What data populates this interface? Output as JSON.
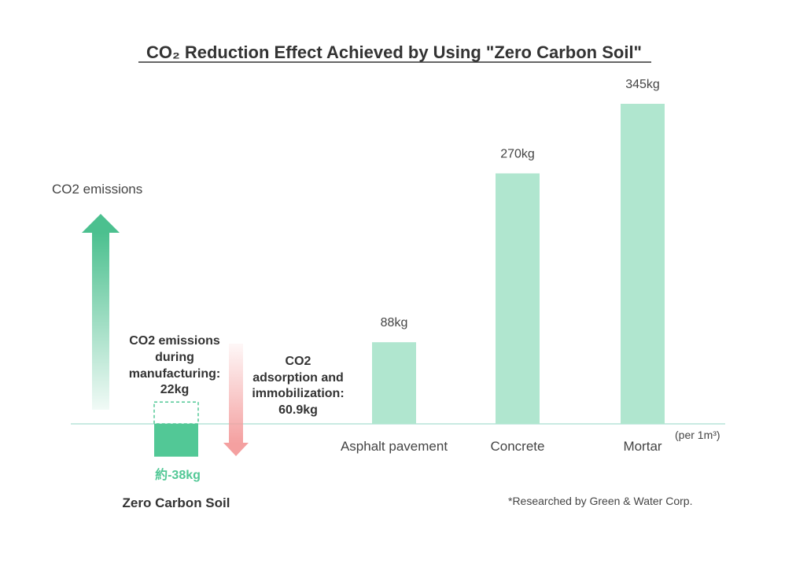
{
  "colors": {
    "bar": "#b0e6cf",
    "zero_bar": "#52c896",
    "baseline": "#a9ded0",
    "up_arrow": "#4cc08f",
    "down_arrow": "#f4a0a0",
    "text": "#333333"
  },
  "chart_data": {
    "type": "bar",
    "title": "CO₂ Reduction Effect Achieved by Using \"Zero Carbon Soil\"",
    "ylabel": "CO2 emissions",
    "unit_note": "(per 1m³)",
    "ylim": [
      -60,
      380
    ],
    "categories": [
      "Asphalt pavement",
      "Concrete",
      "Mortar"
    ],
    "values": [
      88,
      270,
      345
    ],
    "value_labels": [
      "88kg",
      "270kg",
      "345kg"
    ],
    "zero_carbon_soil": {
      "label": "Zero Carbon Soil",
      "value": -38,
      "value_label": "約-38kg",
      "manufacturing_emissions": 22,
      "manufacturing_text": [
        "CO2 emissions",
        "during",
        "manufacturing:",
        "22kg"
      ],
      "adsorption": 60.9,
      "adsorption_text": [
        "CO2",
        "adsorption and",
        "immobilization:",
        "60.9kg"
      ]
    },
    "footnote": "*Researched by Green & Water Corp."
  }
}
